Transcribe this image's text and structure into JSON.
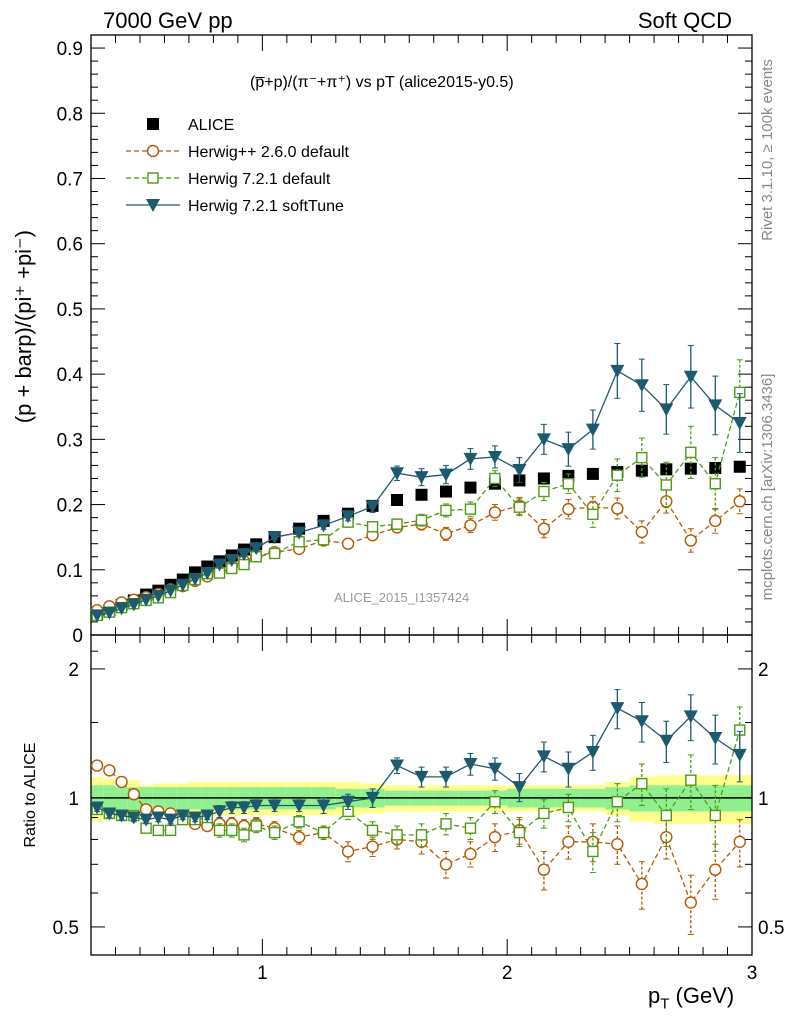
{
  "header": {
    "left": "7000 GeV pp",
    "right": "Soft QCD"
  },
  "side": {
    "rivet": "Rivet 3.1.10, ≥ 100k events",
    "mcplots": "mcplots.cern.ch [arXiv:1306.3436]"
  },
  "watermark": "ALICE_2015_I1357424",
  "chart_data": [
    {
      "type": "scatter",
      "title": "(p̅+p)/(π⁻+π⁺) vs pT (alice2015-y0.5)",
      "ylabel": "(p + barp)/(pi⁺ +pi⁻)",
      "xlabel": "p_T (GeV)",
      "xlim": [
        0.3,
        3.0
      ],
      "ylim": [
        0,
        0.92
      ],
      "yticks": [
        "0",
        "0.1",
        "0.2",
        "0.3",
        "0.4",
        "0.5",
        "0.6",
        "0.7",
        "0.8",
        "0.9"
      ],
      "xticks": [
        "1",
        "2",
        "3"
      ],
      "legend_position": "top-left",
      "series": [
        {
          "name": "ALICE",
          "color": "#000000",
          "marker": "filled-square",
          "x": [
            0.325,
            0.375,
            0.425,
            0.475,
            0.525,
            0.575,
            0.625,
            0.675,
            0.725,
            0.775,
            0.825,
            0.875,
            0.925,
            0.975,
            1.05,
            1.15,
            1.25,
            1.35,
            1.45,
            1.55,
            1.65,
            1.75,
            1.85,
            1.95,
            2.05,
            2.15,
            2.25,
            2.35,
            2.45,
            2.55,
            2.65,
            2.75,
            2.85,
            2.95
          ],
          "y": [
            0.032,
            0.038,
            0.046,
            0.053,
            0.062,
            0.068,
            0.077,
            0.085,
            0.096,
            0.105,
            0.113,
            0.122,
            0.131,
            0.139,
            0.15,
            0.163,
            0.175,
            0.186,
            0.198,
            0.207,
            0.215,
            0.22,
            0.226,
            0.232,
            0.237,
            0.24,
            0.244,
            0.247,
            0.25,
            0.252,
            0.254,
            0.255,
            0.256,
            0.258
          ]
        },
        {
          "name": "Herwig++ 2.6.0 default",
          "color": "#b35900",
          "marker": "open-circle",
          "line": "dashed",
          "x": [
            0.325,
            0.375,
            0.425,
            0.475,
            0.525,
            0.575,
            0.625,
            0.675,
            0.725,
            0.775,
            0.825,
            0.875,
            0.925,
            0.975,
            1.05,
            1.15,
            1.25,
            1.35,
            1.45,
            1.55,
            1.65,
            1.75,
            1.85,
            1.95,
            2.05,
            2.15,
            2.25,
            2.35,
            2.45,
            2.55,
            2.65,
            2.75,
            2.85,
            2.95
          ],
          "y": [
            0.038,
            0.044,
            0.05,
            0.054,
            0.058,
            0.063,
            0.07,
            0.075,
            0.083,
            0.09,
            0.098,
            0.106,
            0.113,
            0.121,
            0.127,
            0.132,
            0.145,
            0.14,
            0.153,
            0.165,
            0.17,
            0.155,
            0.168,
            0.188,
            0.198,
            0.163,
            0.193,
            0.196,
            0.194,
            0.158,
            0.205,
            0.145,
            0.175,
            0.205
          ],
          "yerr": [
            0.001,
            0.001,
            0.001,
            0.001,
            0.002,
            0.002,
            0.002,
            0.002,
            0.002,
            0.003,
            0.003,
            0.003,
            0.003,
            0.003,
            0.004,
            0.004,
            0.005,
            0.006,
            0.007,
            0.008,
            0.009,
            0.01,
            0.011,
            0.012,
            0.013,
            0.014,
            0.015,
            0.016,
            0.016,
            0.017,
            0.018,
            0.018,
            0.019,
            0.019
          ]
        },
        {
          "name": "Herwig 7.2.1 default",
          "color": "#4f9a16",
          "marker": "open-square",
          "line": "dashed",
          "x": [
            0.325,
            0.375,
            0.425,
            0.475,
            0.525,
            0.575,
            0.625,
            0.675,
            0.725,
            0.775,
            0.825,
            0.875,
            0.925,
            0.975,
            1.05,
            1.15,
            1.25,
            1.35,
            1.45,
            1.55,
            1.65,
            1.75,
            1.85,
            1.95,
            2.05,
            2.15,
            2.25,
            2.35,
            2.45,
            2.55,
            2.65,
            2.75,
            2.85,
            2.95
          ],
          "y": [
            0.03,
            0.035,
            0.042,
            0.048,
            0.053,
            0.057,
            0.065,
            0.076,
            0.085,
            0.094,
            0.095,
            0.102,
            0.108,
            0.12,
            0.125,
            0.143,
            0.146,
            0.173,
            0.166,
            0.17,
            0.176,
            0.191,
            0.193,
            0.24,
            0.196,
            0.22,
            0.232,
            0.185,
            0.245,
            0.272,
            0.23,
            0.28,
            0.232,
            0.372
          ],
          "yerr": [
            0.001,
            0.001,
            0.001,
            0.001,
            0.002,
            0.002,
            0.002,
            0.002,
            0.002,
            0.003,
            0.003,
            0.003,
            0.003,
            0.003,
            0.004,
            0.004,
            0.005,
            0.006,
            0.007,
            0.008,
            0.009,
            0.01,
            0.011,
            0.012,
            0.013,
            0.014,
            0.015,
            0.02,
            0.025,
            0.03,
            0.035,
            0.04,
            0.04,
            0.05
          ]
        },
        {
          "name": "Herwig 7.2.1 softTune",
          "color": "#1e5a6e",
          "marker": "filled-triangle-down",
          "line": "solid",
          "x": [
            0.325,
            0.375,
            0.425,
            0.475,
            0.525,
            0.575,
            0.625,
            0.675,
            0.725,
            0.775,
            0.825,
            0.875,
            0.925,
            0.975,
            1.05,
            1.15,
            1.25,
            1.35,
            1.45,
            1.55,
            1.65,
            1.75,
            1.85,
            1.95,
            2.05,
            2.15,
            2.25,
            2.35,
            2.45,
            2.55,
            2.65,
            2.75,
            2.85,
            2.95
          ],
          "y": [
            0.03,
            0.034,
            0.041,
            0.047,
            0.054,
            0.06,
            0.068,
            0.077,
            0.086,
            0.095,
            0.108,
            0.115,
            0.124,
            0.133,
            0.15,
            0.157,
            0.168,
            0.182,
            0.197,
            0.248,
            0.242,
            0.246,
            0.27,
            0.273,
            0.253,
            0.3,
            0.285,
            0.315,
            0.405,
            0.383,
            0.346,
            0.396,
            0.352,
            0.325
          ],
          "yerr": [
            0.001,
            0.001,
            0.001,
            0.001,
            0.002,
            0.002,
            0.002,
            0.002,
            0.002,
            0.003,
            0.003,
            0.003,
            0.003,
            0.003,
            0.004,
            0.005,
            0.006,
            0.007,
            0.009,
            0.011,
            0.013,
            0.014,
            0.016,
            0.017,
            0.019,
            0.023,
            0.026,
            0.03,
            0.042,
            0.04,
            0.038,
            0.048,
            0.045,
            0.045
          ]
        }
      ]
    },
    {
      "type": "scatter",
      "ylabel": "Ratio to ALICE",
      "xlabel": "p_T (GeV)",
      "xlim": [
        0.3,
        3.0
      ],
      "ylim": [
        0.43,
        2.4
      ],
      "y_scale": "log",
      "yticks": [
        "0.5",
        "1",
        "2"
      ],
      "xticks": [
        "1",
        "2",
        "3"
      ],
      "reference_line": 1,
      "band_inner_color": "#90f090",
      "band_outer_color": "#ffff90",
      "bands": {
        "x_edges": [
          0.3,
          0.35,
          0.4,
          0.45,
          0.5,
          0.55,
          0.6,
          0.65,
          0.7,
          0.75,
          0.8,
          0.85,
          0.9,
          0.95,
          1.0,
          1.1,
          1.2,
          1.3,
          1.4,
          1.5,
          1.6,
          1.7,
          1.8,
          1.9,
          2.0,
          2.1,
          2.2,
          2.3,
          2.4,
          2.5,
          2.6,
          2.7,
          2.8,
          2.9,
          3.0
        ],
        "inner_half": [
          0.07,
          0.07,
          0.06,
          0.06,
          0.06,
          0.06,
          0.06,
          0.06,
          0.06,
          0.06,
          0.06,
          0.06,
          0.06,
          0.06,
          0.06,
          0.06,
          0.06,
          0.05,
          0.05,
          0.04,
          0.04,
          0.04,
          0.04,
          0.04,
          0.05,
          0.05,
          0.05,
          0.05,
          0.06,
          0.07,
          0.07,
          0.07,
          0.07,
          0.07
        ],
        "outer_half": [
          0.12,
          0.11,
          0.1,
          0.1,
          0.07,
          0.08,
          0.08,
          0.08,
          0.09,
          0.09,
          0.09,
          0.09,
          0.09,
          0.09,
          0.09,
          0.09,
          0.09,
          0.09,
          0.08,
          0.07,
          0.07,
          0.07,
          0.07,
          0.07,
          0.07,
          0.07,
          0.07,
          0.07,
          0.09,
          0.12,
          0.13,
          0.13,
          0.13,
          0.13
        ]
      },
      "series": [
        {
          "name": "Herwig++ 2.6.0 default",
          "color": "#b35900",
          "marker": "open-circle",
          "line": "dashed",
          "x": [
            0.325,
            0.375,
            0.425,
            0.475,
            0.525,
            0.575,
            0.625,
            0.675,
            0.725,
            0.775,
            0.825,
            0.875,
            0.925,
            0.975,
            1.05,
            1.15,
            1.25,
            1.35,
            1.45,
            1.55,
            1.65,
            1.75,
            1.85,
            1.95,
            2.05,
            2.15,
            2.25,
            2.35,
            2.45,
            2.55,
            2.65,
            2.75,
            2.85,
            2.95
          ],
          "y": [
            1.19,
            1.16,
            1.09,
            1.02,
            0.94,
            0.93,
            0.92,
            0.91,
            0.87,
            0.86,
            0.87,
            0.87,
            0.86,
            0.87,
            0.85,
            0.81,
            0.83,
            0.75,
            0.77,
            0.8,
            0.79,
            0.7,
            0.74,
            0.81,
            0.84,
            0.68,
            0.79,
            0.79,
            0.78,
            0.63,
            0.81,
            0.57,
            0.68,
            0.79
          ],
          "yerr": [
            0.02,
            0.02,
            0.02,
            0.02,
            0.02,
            0.02,
            0.02,
            0.02,
            0.02,
            0.02,
            0.03,
            0.03,
            0.03,
            0.03,
            0.03,
            0.03,
            0.03,
            0.04,
            0.04,
            0.04,
            0.05,
            0.05,
            0.05,
            0.06,
            0.06,
            0.07,
            0.07,
            0.08,
            0.08,
            0.08,
            0.09,
            0.09,
            0.1,
            0.1
          ]
        },
        {
          "name": "Herwig 7.2.1 default",
          "color": "#4f9a16",
          "marker": "open-square",
          "line": "dashed",
          "x": [
            0.325,
            0.375,
            0.425,
            0.475,
            0.525,
            0.575,
            0.625,
            0.675,
            0.725,
            0.775,
            0.825,
            0.875,
            0.925,
            0.975,
            1.05,
            1.15,
            1.25,
            1.35,
            1.45,
            1.55,
            1.65,
            1.75,
            1.85,
            1.95,
            2.05,
            2.15,
            2.25,
            2.35,
            2.45,
            2.55,
            2.65,
            2.75,
            2.85,
            2.95
          ],
          "y": [
            0.94,
            0.92,
            0.91,
            0.91,
            0.85,
            0.84,
            0.84,
            0.89,
            0.89,
            0.9,
            0.84,
            0.84,
            0.82,
            0.86,
            0.83,
            0.88,
            0.83,
            0.93,
            0.84,
            0.82,
            0.82,
            0.87,
            0.85,
            0.98,
            0.83,
            0.92,
            0.95,
            0.75,
            0.98,
            1.08,
            0.91,
            1.1,
            0.91,
            1.44
          ],
          "yerr": [
            0.02,
            0.02,
            0.02,
            0.02,
            0.02,
            0.02,
            0.02,
            0.02,
            0.02,
            0.02,
            0.03,
            0.03,
            0.03,
            0.03,
            0.03,
            0.03,
            0.03,
            0.04,
            0.04,
            0.04,
            0.05,
            0.05,
            0.05,
            0.06,
            0.06,
            0.07,
            0.07,
            0.08,
            0.1,
            0.12,
            0.14,
            0.16,
            0.16,
            0.19
          ]
        },
        {
          "name": "Herwig 7.2.1 softTune",
          "color": "#1e5a6e",
          "marker": "filled-triangle-down",
          "line": "solid",
          "x": [
            0.325,
            0.375,
            0.425,
            0.475,
            0.525,
            0.575,
            0.625,
            0.675,
            0.725,
            0.775,
            0.825,
            0.875,
            0.925,
            0.975,
            1.05,
            1.15,
            1.25,
            1.35,
            1.45,
            1.55,
            1.65,
            1.75,
            1.85,
            1.95,
            2.05,
            2.15,
            2.25,
            2.35,
            2.45,
            2.55,
            2.65,
            2.75,
            2.85,
            2.95
          ],
          "y": [
            0.95,
            0.92,
            0.91,
            0.9,
            0.89,
            0.9,
            0.89,
            0.91,
            0.9,
            0.91,
            0.93,
            0.95,
            0.95,
            0.96,
            0.96,
            0.96,
            0.96,
            0.98,
            1.0,
            1.19,
            1.12,
            1.12,
            1.2,
            1.17,
            1.06,
            1.25,
            1.17,
            1.28,
            1.62,
            1.51,
            1.36,
            1.55,
            1.38,
            1.26
          ],
          "yerr": [
            0.02,
            0.02,
            0.02,
            0.02,
            0.02,
            0.02,
            0.02,
            0.02,
            0.02,
            0.02,
            0.03,
            0.03,
            0.03,
            0.03,
            0.03,
            0.03,
            0.04,
            0.04,
            0.05,
            0.05,
            0.06,
            0.06,
            0.07,
            0.07,
            0.08,
            0.1,
            0.11,
            0.12,
            0.17,
            0.16,
            0.15,
            0.19,
            0.18,
            0.17
          ]
        }
      ]
    }
  ]
}
